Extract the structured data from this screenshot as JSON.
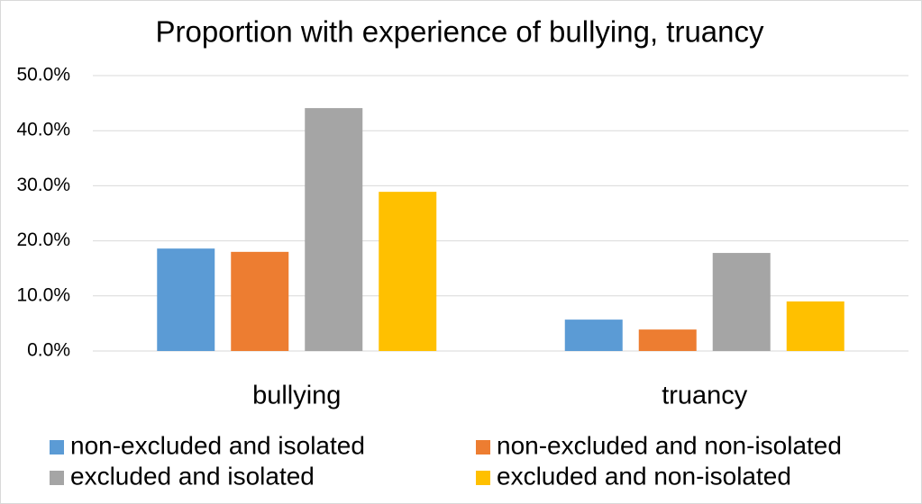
{
  "chart_data": {
    "type": "bar",
    "title": "Proportion with experience of bullying, truancy",
    "categories": [
      "bullying",
      "truancy"
    ],
    "series": [
      {
        "name": "non-excluded and isolated",
        "color": "#5b9bd5",
        "values": [
          18.6,
          5.7
        ]
      },
      {
        "name": "non-excluded and non-isolated",
        "color": "#ed7d31",
        "values": [
          18.0,
          3.9
        ]
      },
      {
        "name": "excluded and isolated",
        "color": "#a5a5a5",
        "values": [
          44.1,
          17.8
        ]
      },
      {
        "name": "excluded and non-isolated",
        "color": "#ffc000",
        "values": [
          28.9,
          9.0
        ]
      }
    ],
    "ylim": [
      0,
      50
    ],
    "yticks": [
      {
        "value": 0,
        "label": "0.0%"
      },
      {
        "value": 10,
        "label": "10.0%"
      },
      {
        "value": 20,
        "label": "20.0%"
      },
      {
        "value": 30,
        "label": "30.0%"
      },
      {
        "value": 40,
        "label": "40.0%"
      },
      {
        "value": 50,
        "label": "50.0%"
      }
    ],
    "grid": true
  }
}
